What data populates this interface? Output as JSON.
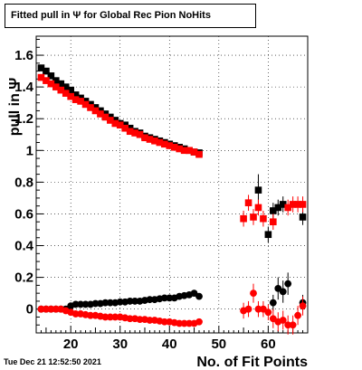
{
  "title": "Fitted pull in  Ψ  for Global Rec Pion NoHits",
  "timestamp": "Tue Dec 21 12:52:50 2021",
  "chart_data": {
    "type": "scatter",
    "xlabel": "No. of Fit Points",
    "ylabel": "pull in Ψ",
    "xlim": [
      13,
      68
    ],
    "ylim": [
      -0.15,
      1.72
    ],
    "x_ticks": [
      "20",
      "30",
      "40",
      "50",
      "60"
    ],
    "y_ticks": [
      "0",
      "0.2",
      "0.4",
      "0.6",
      "0.8",
      "1",
      "1.2",
      "1.4",
      "1.6"
    ],
    "grid": true,
    "series": [
      {
        "color": "#000000",
        "marker": "square",
        "points": [
          [
            14,
            1.52
          ],
          [
            15,
            1.5
          ],
          [
            16,
            1.47
          ],
          [
            17,
            1.44
          ],
          [
            18,
            1.42
          ],
          [
            19,
            1.4
          ],
          [
            20,
            1.38
          ],
          [
            21,
            1.35
          ],
          [
            22,
            1.33
          ],
          [
            23,
            1.31
          ],
          [
            24,
            1.29
          ],
          [
            25,
            1.27
          ],
          [
            26,
            1.25
          ],
          [
            27,
            1.23
          ],
          [
            28,
            1.21
          ],
          [
            29,
            1.19
          ],
          [
            30,
            1.17
          ],
          [
            31,
            1.16
          ],
          [
            32,
            1.14
          ],
          [
            33,
            1.12
          ],
          [
            34,
            1.11
          ],
          [
            35,
            1.09
          ],
          [
            36,
            1.08
          ],
          [
            37,
            1.07
          ],
          [
            38,
            1.06
          ],
          [
            39,
            1.05
          ],
          [
            40,
            1.04
          ],
          [
            41,
            1.03
          ],
          [
            42,
            1.02
          ],
          [
            43,
            1.01
          ],
          [
            44,
            1.0
          ],
          [
            45,
            0.99
          ],
          [
            46,
            0.985
          ],
          [
            58,
            0.75
          ],
          [
            60,
            0.47
          ],
          [
            61,
            0.62
          ],
          [
            62,
            0.64
          ],
          [
            63,
            0.66
          ],
          [
            67,
            0.58
          ]
        ],
        "errors": {
          "58": 0.1,
          "60": 0.05,
          "61": 0.05,
          "62": 0.05,
          "63": 0.05,
          "67": 0.05
        }
      },
      {
        "color": "#ff0000",
        "marker": "square",
        "points": [
          [
            14,
            1.46
          ],
          [
            15,
            1.44
          ],
          [
            16,
            1.42
          ],
          [
            17,
            1.4
          ],
          [
            18,
            1.38
          ],
          [
            19,
            1.36
          ],
          [
            20,
            1.34
          ],
          [
            21,
            1.32
          ],
          [
            22,
            1.31
          ],
          [
            23,
            1.29
          ],
          [
            24,
            1.27
          ],
          [
            25,
            1.25
          ],
          [
            26,
            1.23
          ],
          [
            27,
            1.21
          ],
          [
            28,
            1.19
          ],
          [
            29,
            1.17
          ],
          [
            30,
            1.16
          ],
          [
            31,
            1.14
          ],
          [
            32,
            1.12
          ],
          [
            33,
            1.11
          ],
          [
            34,
            1.1
          ],
          [
            35,
            1.08
          ],
          [
            36,
            1.07
          ],
          [
            37,
            1.06
          ],
          [
            38,
            1.05
          ],
          [
            39,
            1.04
          ],
          [
            40,
            1.03
          ],
          [
            41,
            1.02
          ],
          [
            42,
            1.01
          ],
          [
            43,
            1.0
          ],
          [
            44,
            1.0
          ],
          [
            45,
            0.99
          ],
          [
            46,
            0.975
          ],
          [
            55,
            0.57
          ],
          [
            56,
            0.67
          ],
          [
            57,
            0.58
          ],
          [
            58,
            0.64
          ],
          [
            59,
            0.57
          ],
          [
            61,
            0.55
          ],
          [
            64,
            0.64
          ],
          [
            65,
            0.66
          ],
          [
            66,
            0.66
          ],
          [
            67,
            0.66
          ]
        ],
        "errors": {
          "55": 0.05,
          "56": 0.05,
          "57": 0.05,
          "58": 0.05,
          "59": 0.05,
          "61": 0.05,
          "64": 0.05,
          "65": 0.05,
          "66": 0.05,
          "67": 0.05
        }
      },
      {
        "color": "#000000",
        "marker": "circle",
        "points": [
          [
            14,
            0.0
          ],
          [
            15,
            0.0
          ],
          [
            16,
            0.0
          ],
          [
            17,
            0.0
          ],
          [
            18,
            0.0
          ],
          [
            19,
            0.0
          ],
          [
            20,
            0.02
          ],
          [
            21,
            0.03
          ],
          [
            22,
            0.03
          ],
          [
            23,
            0.03
          ],
          [
            24,
            0.03
          ],
          [
            25,
            0.035
          ],
          [
            26,
            0.035
          ],
          [
            27,
            0.04
          ],
          [
            28,
            0.04
          ],
          [
            29,
            0.04
          ],
          [
            30,
            0.045
          ],
          [
            31,
            0.045
          ],
          [
            32,
            0.05
          ],
          [
            33,
            0.05
          ],
          [
            34,
            0.05
          ],
          [
            35,
            0.055
          ],
          [
            36,
            0.06
          ],
          [
            37,
            0.06
          ],
          [
            38,
            0.065
          ],
          [
            39,
            0.07
          ],
          [
            40,
            0.07
          ],
          [
            41,
            0.07
          ],
          [
            42,
            0.08
          ],
          [
            43,
            0.085
          ],
          [
            44,
            0.09
          ],
          [
            45,
            0.1
          ],
          [
            46,
            0.08
          ],
          [
            61,
            0.04
          ],
          [
            62,
            0.13
          ],
          [
            63,
            0.11
          ],
          [
            64,
            0.16
          ],
          [
            67,
            0.04
          ]
        ],
        "errors": {
          "61": 0.05,
          "62": 0.07,
          "63": 0.07,
          "64": 0.07,
          "67": 0.05
        }
      },
      {
        "color": "#ff0000",
        "marker": "circle",
        "points": [
          [
            14,
            0.0
          ],
          [
            15,
            0.0
          ],
          [
            16,
            0.0
          ],
          [
            17,
            0.0
          ],
          [
            18,
            0.0
          ],
          [
            19,
            -0.01
          ],
          [
            20,
            -0.02
          ],
          [
            21,
            -0.03
          ],
          [
            22,
            -0.03
          ],
          [
            23,
            -0.035
          ],
          [
            24,
            -0.04
          ],
          [
            25,
            -0.04
          ],
          [
            26,
            -0.045
          ],
          [
            27,
            -0.05
          ],
          [
            28,
            -0.05
          ],
          [
            29,
            -0.05
          ],
          [
            30,
            -0.05
          ],
          [
            31,
            -0.055
          ],
          [
            32,
            -0.06
          ],
          [
            33,
            -0.06
          ],
          [
            34,
            -0.065
          ],
          [
            35,
            -0.065
          ],
          [
            36,
            -0.07
          ],
          [
            37,
            -0.07
          ],
          [
            38,
            -0.075
          ],
          [
            39,
            -0.08
          ],
          [
            40,
            -0.08
          ],
          [
            41,
            -0.085
          ],
          [
            42,
            -0.09
          ],
          [
            43,
            -0.09
          ],
          [
            44,
            -0.09
          ],
          [
            45,
            -0.09
          ],
          [
            46,
            -0.08
          ],
          [
            55,
            -0.01
          ],
          [
            56,
            0.0
          ],
          [
            57,
            0.1
          ],
          [
            58,
            0.0
          ],
          [
            59,
            0.0
          ],
          [
            60,
            -0.02
          ],
          [
            61,
            -0.06
          ],
          [
            62,
            -0.08
          ],
          [
            63,
            -0.07
          ],
          [
            64,
            -0.1
          ],
          [
            65,
            -0.1
          ],
          [
            66,
            -0.04
          ],
          [
            67,
            0.02
          ]
        ],
        "errors": {
          "55": 0.05,
          "56": 0.05,
          "57": 0.06,
          "58": 0.05,
          "59": 0.05,
          "60": 0.05,
          "61": 0.06,
          "62": 0.06,
          "63": 0.06,
          "64": 0.06,
          "65": 0.06,
          "66": 0.06,
          "67": 0.06
        }
      }
    ]
  }
}
